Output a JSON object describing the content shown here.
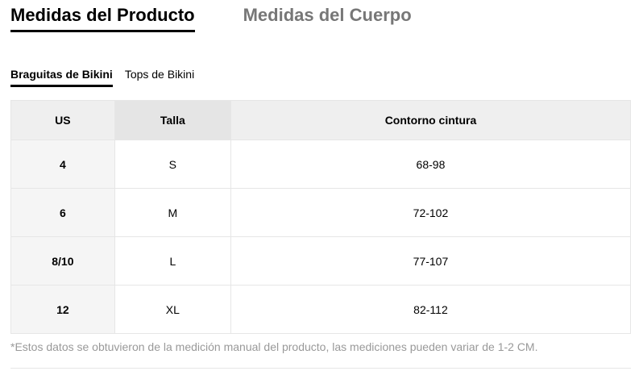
{
  "main_tabs": [
    {
      "label": "Medidas del Producto",
      "active": true
    },
    {
      "label": "Medidas del Cuerpo",
      "active": false
    }
  ],
  "sub_tabs": [
    {
      "label": "Braguitas de Bikini",
      "active": true
    },
    {
      "label": "Tops de Bikini",
      "active": false
    }
  ],
  "table": {
    "headers": [
      "US",
      "Talla",
      "Contorno cintura"
    ],
    "rows": [
      [
        "4",
        "S",
        "68-98"
      ],
      [
        "6",
        "M",
        "72-102"
      ],
      [
        "8/10",
        "L",
        "77-107"
      ],
      [
        "12",
        "XL",
        "82-112"
      ]
    ]
  },
  "note": "*Estos datos se obtuvieron de la medición manual del producto, las mediciones pueden variar de 1-2 CM."
}
